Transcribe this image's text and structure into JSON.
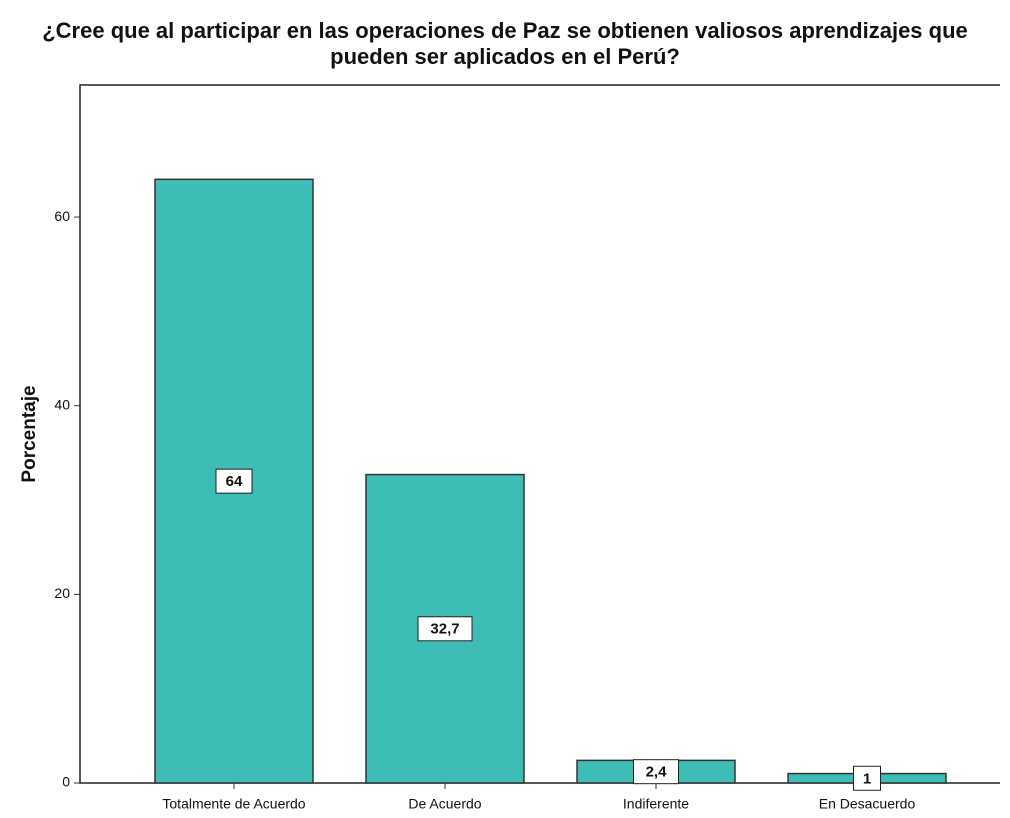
{
  "chart_data": {
    "type": "bar",
    "title": "¿Cree que al participar en las operaciones de Paz se obtienen valiosos aprendizajes que pueden ser aplicados en el Perú?",
    "y_label": "Porcentaje",
    "categories": [
      "Totalmente de Acuerdo",
      "De Acuerdo",
      "Indiferente",
      "En Desacuerdo"
    ],
    "values": [
      64,
      32.7,
      2.4,
      1
    ],
    "value_labels": [
      "64",
      "32,7",
      "2,4",
      "1"
    ],
    "color": "#3dbdb5",
    "ylim": [
      0,
      74
    ],
    "yticks": [
      0,
      20,
      40,
      60
    ],
    "grid": false
  }
}
